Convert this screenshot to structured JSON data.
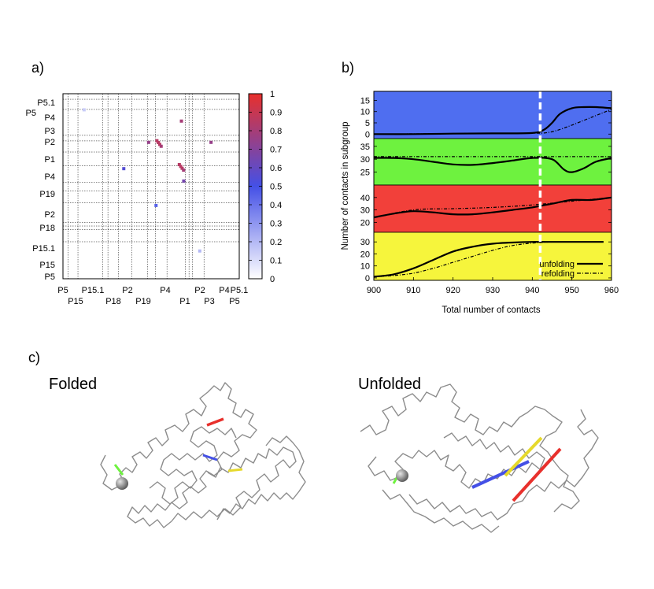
{
  "panel_labels": {
    "a": "a)",
    "b": "b)",
    "c": "c)"
  },
  "colors": {
    "band_blue": "#4f6ef0",
    "band_green": "#6ef23f",
    "band_red": "#f2403a",
    "band_yellow": "#f6f53c",
    "cmap_low": "#ffffff",
    "cmap_mid": "#4450e6",
    "cmap_high": "#e8302c",
    "protein": "#8c8c8c"
  },
  "chart_data": [
    {
      "id": "a",
      "type": "heatmap",
      "title": "",
      "row_labels": [
        "P5.1",
        "P5",
        "P4",
        "P3",
        "P2",
        "P1",
        "P4",
        "P19",
        "P2",
        "P18",
        "P15.1",
        "P15",
        "P5"
      ],
      "col_labels_row1": [
        "P5",
        "P15.1",
        "P2",
        "P4",
        "P2",
        "P4",
        "P5.1"
      ],
      "col_labels_row2": [
        "P15",
        "P18",
        "P19",
        "P1",
        "P3",
        "P5"
      ],
      "colorbar_ticks": [
        "1",
        "0.9",
        "0.8",
        "0.7",
        "0.6",
        "0.5",
        "0.4",
        "0.3",
        "0.2",
        "0.1",
        "0"
      ],
      "colorbar_range": [
        0,
        1
      ],
      "grid_fractions": [
        0.03,
        0.085,
        0.225,
        0.255,
        0.315,
        0.39,
        0.48,
        0.525,
        0.59,
        0.695,
        0.715,
        0.735,
        0.8
      ],
      "cells": [
        {
          "x": 0.672,
          "y": 0.148,
          "v": 0.8
        },
        {
          "x": 0.486,
          "y": 0.263,
          "v": 0.75
        },
        {
          "x": 0.533,
          "y": 0.254,
          "v": 0.85
        },
        {
          "x": 0.541,
          "y": 0.264,
          "v": 0.85
        },
        {
          "x": 0.549,
          "y": 0.274,
          "v": 0.85
        },
        {
          "x": 0.557,
          "y": 0.284,
          "v": 0.8
        },
        {
          "x": 0.84,
          "y": 0.263,
          "v": 0.75
        },
        {
          "x": 0.66,
          "y": 0.383,
          "v": 0.85
        },
        {
          "x": 0.668,
          "y": 0.393,
          "v": 0.85
        },
        {
          "x": 0.676,
          "y": 0.403,
          "v": 0.85
        },
        {
          "x": 0.684,
          "y": 0.413,
          "v": 0.8
        },
        {
          "x": 0.345,
          "y": 0.405,
          "v": 0.55
        },
        {
          "x": 0.685,
          "y": 0.472,
          "v": 0.65
        },
        {
          "x": 0.528,
          "y": 0.604,
          "v": 0.45
        },
        {
          "x": 0.12,
          "y": 0.087,
          "v": 0.15
        },
        {
          "x": 0.776,
          "y": 0.85,
          "v": 0.2
        }
      ]
    },
    {
      "id": "b",
      "type": "line",
      "xlabel": "Total number of contacts",
      "ylabel": "Number of contacts in subgroup",
      "xlim": [
        900,
        960
      ],
      "xticks": [
        "900",
        "910",
        "920",
        "930",
        "940",
        "950",
        "960"
      ],
      "transition_x": 942,
      "legend": {
        "position": "bottom-right",
        "unfolding": "unfolding",
        "refolding": "refolding"
      },
      "panels": [
        {
          "band": "blue",
          "ylim": [
            -2,
            19
          ],
          "yticks": [
            "15",
            "10",
            "5",
            "0"
          ],
          "unfolding": {
            "x": [
              900,
              910,
              920,
              930,
              940,
              943,
              945,
              947,
              950,
              953,
              956,
              960
            ],
            "y": [
              0,
              0,
              0.2,
              0.3,
              0.5,
              2,
              5,
              9,
              11.5,
              12,
              12,
              11.5
            ]
          },
          "refolding": {
            "x": [
              900,
              930,
              940,
              943,
              946,
              950,
              955,
              960
            ],
            "y": [
              0,
              0.3,
              0.4,
              0.5,
              1.5,
              4,
              7.5,
              11
            ]
          }
        },
        {
          "band": "green",
          "ylim": [
            20,
            38
          ],
          "yticks": [
            "35",
            "30",
            "25"
          ],
          "unfolding": {
            "x": [
              900,
              905,
              910,
              915,
              920,
              925,
              930,
              935,
              940,
              945,
              948,
              950,
              953,
              956,
              960
            ],
            "y": [
              30.5,
              30.5,
              30,
              29,
              28,
              27.8,
              28.5,
              29.5,
              30.5,
              30,
              26,
              25,
              26.5,
              29,
              30.5
            ]
          },
          "refolding": {
            "x": [
              900,
              920,
              940,
              950,
              960
            ],
            "y": [
              31,
              31,
              31,
              31,
              31
            ]
          }
        },
        {
          "band": "red",
          "ylim": [
            12,
            50
          ],
          "yticks": [
            "40",
            "30",
            "20"
          ],
          "unfolding": {
            "x": [
              900,
              905,
              910,
              915,
              920,
              925,
              930,
              935,
              940,
              945,
              950,
              955,
              960
            ],
            "y": [
              24,
              27,
              29,
              28,
              26.5,
              26.5,
              28,
              30,
              32,
              35,
              38,
              38,
              40
            ]
          },
          "refolding": {
            "x": [
              900,
              910,
              920,
              930,
              940,
              950,
              960
            ],
            "y": [
              24,
              30,
              31,
              32,
              34,
              37,
              40
            ]
          }
        },
        {
          "band": "yellow",
          "ylim": [
            -2,
            38
          ],
          "yticks": [
            "30",
            "20",
            "10",
            "0"
          ],
          "unfolding": {
            "x": [
              900,
              905,
              910,
              915,
              920,
              925,
              930,
              935,
              940,
              945,
              950,
              955,
              958
            ],
            "y": [
              1,
              3,
              8,
              15,
              22,
              26,
              28.5,
              29.5,
              30,
              30,
              30,
              30,
              30
            ]
          },
          "refolding": {
            "x": [
              900,
              905,
              910,
              915,
              920,
              925,
              930,
              935,
              940,
              945,
              950,
              955,
              958
            ],
            "y": [
              1,
              2,
              4,
              8,
              13,
              18,
              23,
              27,
              29,
              30,
              30,
              30,
              30
            ]
          }
        }
      ]
    }
  ],
  "structures": {
    "folded_label": "Folded",
    "unfolded_label": "Unfolded"
  }
}
